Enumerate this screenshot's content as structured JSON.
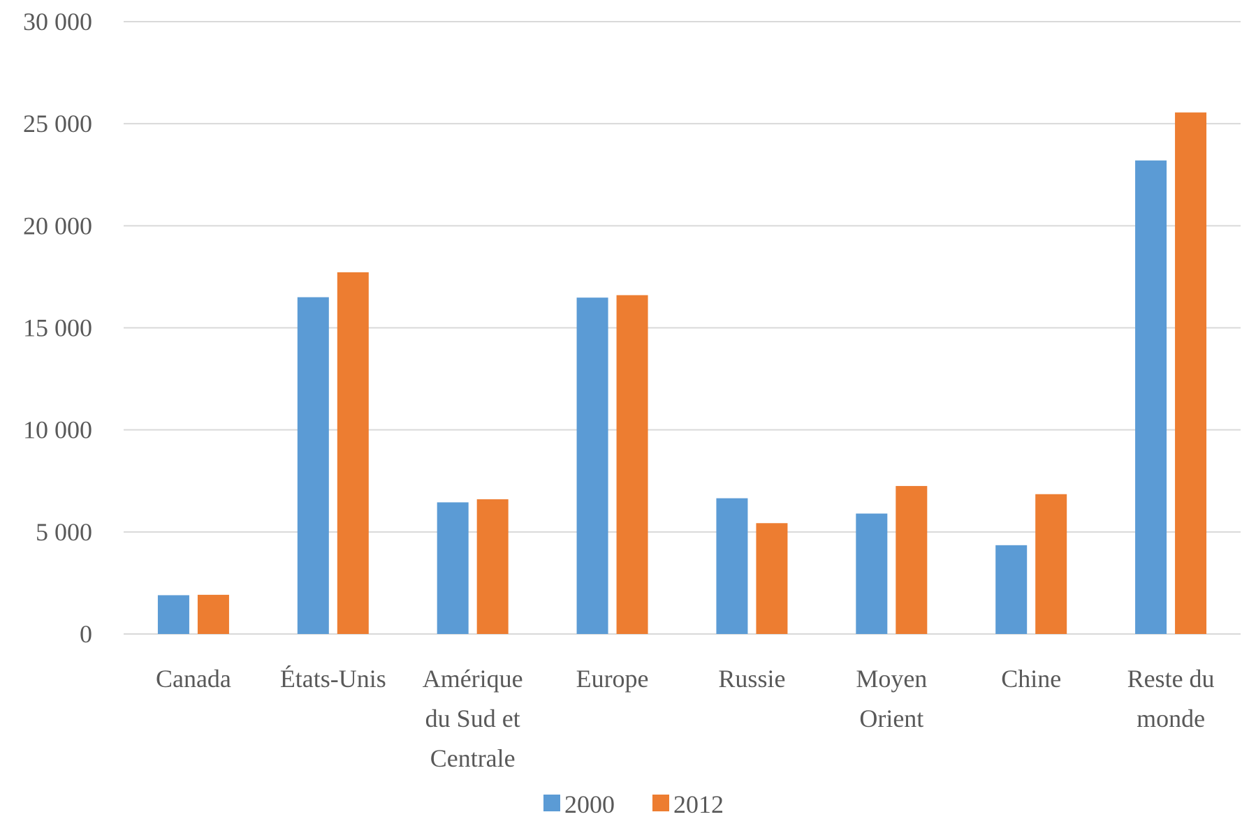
{
  "chart_data": {
    "type": "bar",
    "title": "",
    "xlabel": "",
    "ylabel": "",
    "categories": [
      [
        "Canada"
      ],
      [
        "États-Unis"
      ],
      [
        "Amérique",
        "du Sud et",
        "Centrale"
      ],
      [
        "Europe"
      ],
      [
        "Russie"
      ],
      [
        "Moyen",
        "Orient"
      ],
      [
        "Chine"
      ],
      [
        "Reste du",
        "monde"
      ]
    ],
    "series": [
      {
        "name": "2000",
        "color": "#5B9BD5",
        "values": [
          1900,
          16500,
          6450,
          16480,
          6650,
          5900,
          4350,
          23200
        ]
      },
      {
        "name": "2012",
        "color": "#ED7D31",
        "values": [
          1920,
          17720,
          6600,
          16600,
          5430,
          7250,
          6850,
          25550
        ]
      }
    ],
    "ylim": [
      0,
      30000
    ],
    "yticks": [
      0,
      5000,
      10000,
      15000,
      20000,
      25000,
      30000
    ],
    "ytick_labels": [
      "0",
      "5 000",
      "10 000",
      "15 000",
      "20 000",
      "25 000",
      "30 000"
    ],
    "grid": true,
    "legend": "bottom-center"
  }
}
